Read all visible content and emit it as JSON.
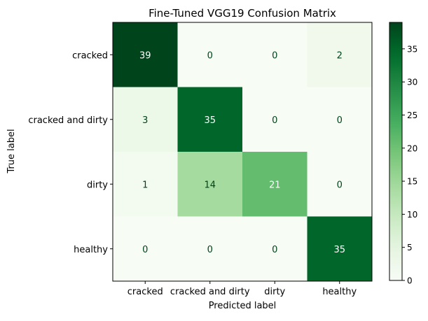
{
  "chart_data": {
    "type": "heatmap",
    "title": "Fine-Tuned VGG19 Confusion Matrix",
    "xlabel": "Predicted label",
    "ylabel": "True label",
    "x_categories": [
      "cracked",
      "cracked and dirty",
      "dirty",
      "healthy"
    ],
    "y_categories": [
      "cracked",
      "cracked and dirty",
      "dirty",
      "healthy"
    ],
    "values": [
      [
        39,
        0,
        0,
        2
      ],
      [
        3,
        35,
        0,
        0
      ],
      [
        1,
        14,
        21,
        0
      ],
      [
        0,
        0,
        0,
        35
      ]
    ],
    "colormap": "Greens",
    "color_range": [
      0,
      39
    ],
    "colorbar_ticks": [
      0,
      5,
      10,
      15,
      20,
      25,
      30,
      35
    ],
    "grid": false
  }
}
